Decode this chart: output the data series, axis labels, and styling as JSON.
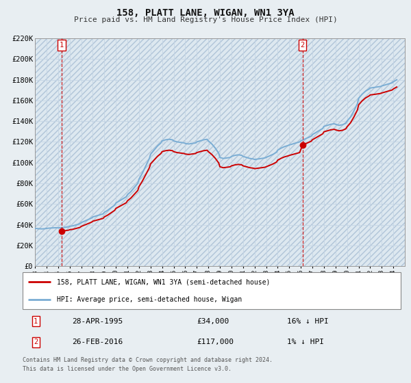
{
  "title1": "158, PLATT LANE, WIGAN, WN1 3YA",
  "title2": "Price paid vs. HM Land Registry's House Price Index (HPI)",
  "ylim": [
    0,
    220000
  ],
  "yticks": [
    0,
    20000,
    40000,
    60000,
    80000,
    100000,
    120000,
    140000,
    160000,
    180000,
    200000,
    220000
  ],
  "ytick_labels": [
    "£0",
    "£20K",
    "£40K",
    "£60K",
    "£80K",
    "£100K",
    "£120K",
    "£140K",
    "£160K",
    "£180K",
    "£200K",
    "£220K"
  ],
  "fig_bg_color": "#e8eef2",
  "plot_bg_color": "#dde8f0",
  "point1_x": 1995.32,
  "point1_y": 34000,
  "point2_x": 2016.15,
  "point2_y": 117000,
  "label1": "158, PLATT LANE, WIGAN, WN1 3YA (semi-detached house)",
  "label2": "HPI: Average price, semi-detached house, Wigan",
  "legend_label1_date": "28-APR-1995",
  "legend_label1_price": "£34,000",
  "legend_label1_hpi": "16% ↓ HPI",
  "legend_label2_date": "26-FEB-2016",
  "legend_label2_price": "£117,000",
  "legend_label2_hpi": "1% ↓ HPI",
  "footnote1": "Contains HM Land Registry data © Crown copyright and database right 2024.",
  "footnote2": "This data is licensed under the Open Government Licence v3.0.",
  "line_color_red": "#cc0000",
  "line_color_blue": "#7aadd4",
  "xlim_start": 1993.0,
  "xlim_end": 2025.0
}
